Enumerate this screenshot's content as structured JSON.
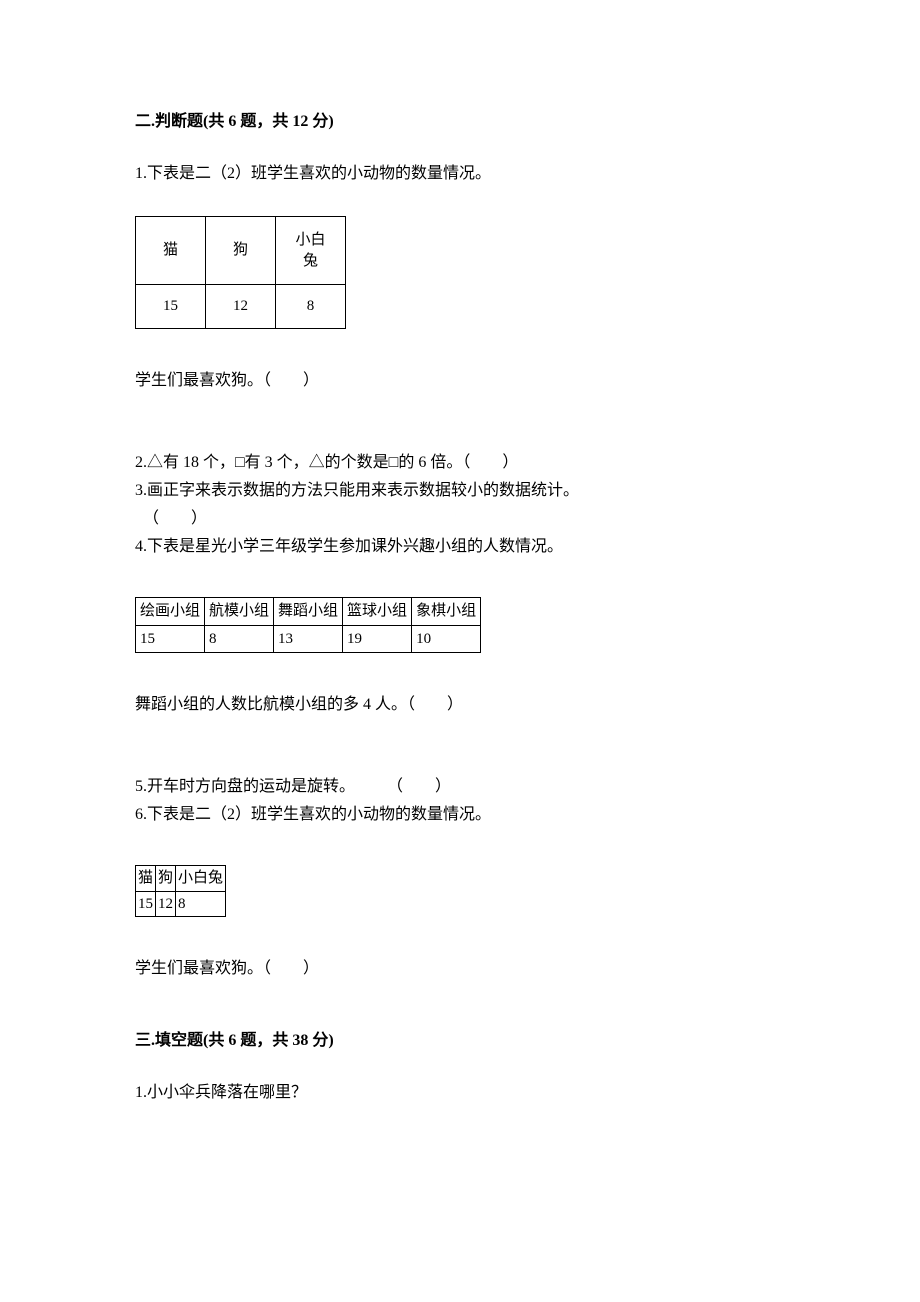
{
  "section2": {
    "heading": "二.判断题(共 6 题，共 12 分)",
    "q1": {
      "intro": "1.下表是二（2）班学生喜欢的小动物的数量情况。",
      "table": {
        "headers": [
          "猫",
          "狗",
          "小白\n兔"
        ],
        "values": [
          "15",
          "12",
          "8"
        ]
      },
      "statement": "学生们最喜欢狗。（　　）"
    },
    "q2": "2.△有 18 个，□有 3 个，△的个数是□的 6 倍。（　　）",
    "q3": {
      "text": "3.画正字来表示数据的方法只能用来表示数据较小的数据统计。",
      "paren": "（　　）"
    },
    "q4": {
      "intro": "4.下表是星光小学三年级学生参加课外兴趣小组的人数情况。",
      "table": {
        "headers": [
          "绘画小组",
          "航模小组",
          "舞蹈小组",
          "篮球小组",
          "象棋小组"
        ],
        "values": [
          "15",
          "8",
          "13",
          "19",
          "10"
        ]
      },
      "statement": "舞蹈小组的人数比航模小组的多 4 人。（　　）"
    },
    "q5": "5.开车时方向盘的运动是旋转。　　　（　　）",
    "q6": {
      "intro": "6.下表是二（2）班学生喜欢的小动物的数量情况。",
      "table": {
        "headers": [
          "猫",
          "狗",
          "小白兔"
        ],
        "values": [
          "15",
          "12",
          "8"
        ]
      },
      "statement": "学生们最喜欢狗。（　　）"
    }
  },
  "section3": {
    "heading": "三.填空题(共 6 题，共 38 分)",
    "q1": "1.小小伞兵降落在哪里？"
  }
}
